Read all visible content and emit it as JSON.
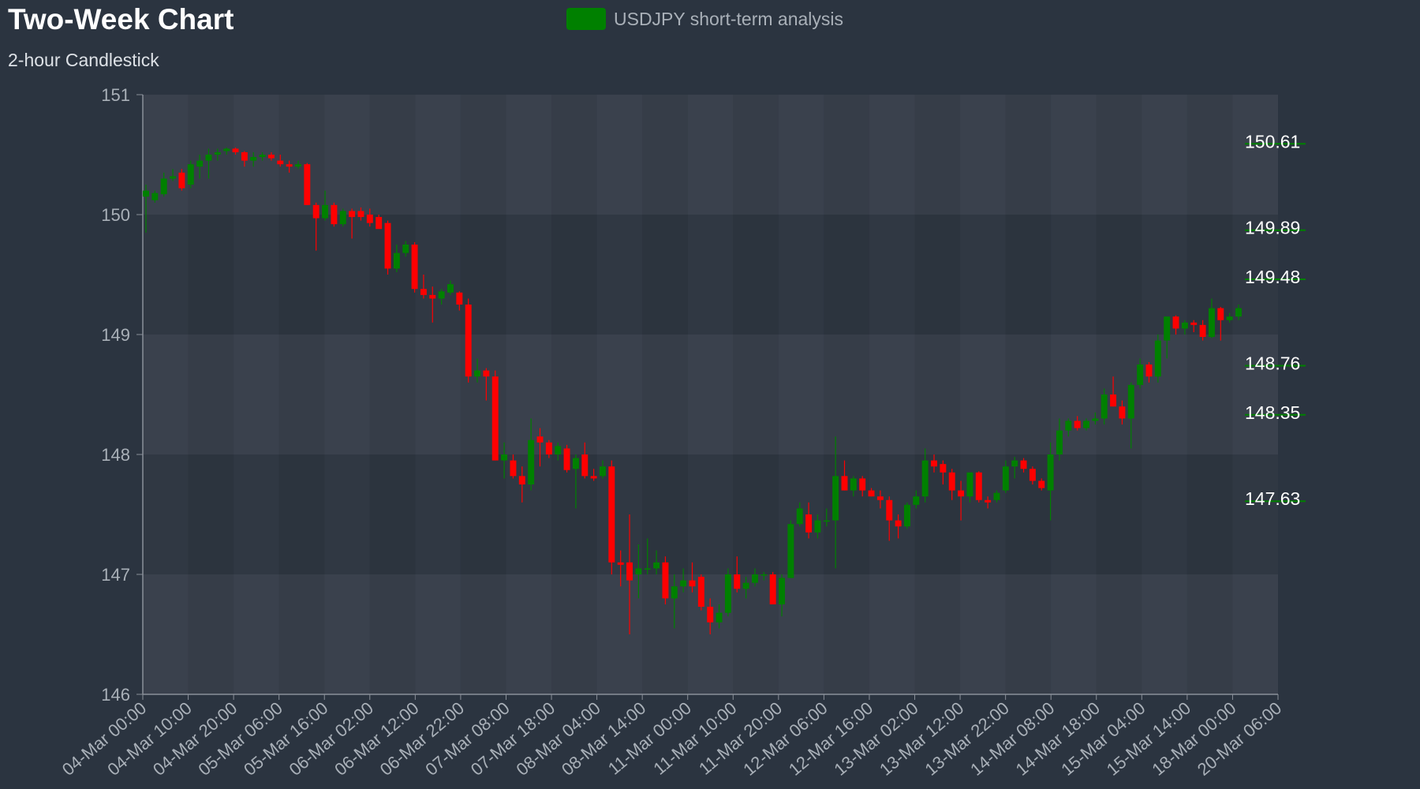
{
  "chart_data": {
    "type": "candlestick",
    "title": "Two-Week Chart",
    "subtitle": "2-hour Candlestick",
    "legend": {
      "label": "USDJPY short-term analysis",
      "color": "#008000",
      "placement": "top-center"
    },
    "y_axis": {
      "min": 146,
      "max": 151,
      "ticks": [
        146,
        147,
        148,
        149,
        150,
        151
      ]
    },
    "x_tick_labels": [
      "04-Mar 00:00",
      "04-Mar 10:00",
      "04-Mar 20:00",
      "05-Mar 06:00",
      "05-Mar 16:00",
      "06-Mar 02:00",
      "06-Mar 12:00",
      "06-Mar 22:00",
      "07-Mar 08:00",
      "07-Mar 18:00",
      "08-Mar 04:00",
      "08-Mar 14:00",
      "11-Mar 00:00",
      "11-Mar 10:00",
      "11-Mar 20:00",
      "12-Mar 06:00",
      "12-Mar 16:00",
      "13-Mar 02:00",
      "13-Mar 12:00",
      "13-Mar 22:00",
      "14-Mar 08:00",
      "14-Mar 18:00",
      "15-Mar 04:00",
      "15-Mar 14:00",
      "18-Mar 00:00",
      "20-Mar 06:00"
    ],
    "up_color": "#008000",
    "down_color": "#ff0000",
    "grid": true,
    "levels": [
      150.61,
      149.89,
      149.48,
      148.76,
      148.35,
      147.63
    ],
    "ohlc": [
      [
        150.15,
        150.25,
        149.85,
        150.2
      ],
      [
        150.12,
        150.2,
        150.1,
        150.18
      ],
      [
        150.17,
        150.35,
        150.15,
        150.3
      ],
      [
        150.3,
        150.38,
        150.28,
        150.32
      ],
      [
        150.35,
        150.38,
        150.2,
        150.22
      ],
      [
        150.25,
        150.45,
        150.22,
        150.42
      ],
      [
        150.4,
        150.5,
        150.3,
        150.45
      ],
      [
        150.45,
        150.55,
        150.3,
        150.5
      ],
      [
        150.5,
        150.55,
        150.45,
        150.52
      ],
      [
        150.53,
        150.56,
        150.5,
        150.55
      ],
      [
        150.55,
        150.56,
        150.5,
        150.52
      ],
      [
        150.52,
        150.53,
        150.4,
        150.45
      ],
      [
        150.45,
        150.52,
        150.4,
        150.48
      ],
      [
        150.48,
        150.52,
        150.45,
        150.5
      ],
      [
        150.5,
        150.52,
        150.45,
        150.47
      ],
      [
        150.45,
        150.5,
        150.4,
        150.42
      ],
      [
        150.42,
        150.45,
        150.35,
        150.4
      ],
      [
        150.4,
        150.45,
        150.38,
        150.42
      ],
      [
        150.42,
        150.43,
        150.08,
        150.08
      ],
      [
        150.08,
        150.1,
        149.7,
        149.97
      ],
      [
        149.97,
        150.2,
        149.95,
        150.08
      ],
      [
        150.08,
        150.1,
        149.9,
        149.92
      ],
      [
        149.92,
        150.05,
        149.9,
        150.03
      ],
      [
        150.03,
        150.05,
        149.8,
        149.98
      ],
      [
        150.03,
        150.06,
        149.95,
        149.98
      ],
      [
        150.0,
        150.05,
        149.9,
        149.93
      ],
      [
        149.98,
        150.0,
        149.9,
        149.88
      ],
      [
        149.93,
        149.95,
        149.5,
        149.55
      ],
      [
        149.55,
        149.75,
        149.52,
        149.68
      ],
      [
        149.68,
        149.78,
        149.65,
        149.75
      ],
      [
        149.75,
        149.77,
        149.35,
        149.38
      ],
      [
        149.38,
        149.5,
        149.3,
        149.33
      ],
      [
        149.33,
        149.4,
        149.1,
        149.3
      ],
      [
        149.3,
        149.38,
        149.25,
        149.36
      ],
      [
        149.35,
        149.45,
        149.33,
        149.42
      ],
      [
        149.35,
        149.36,
        149.2,
        149.25
      ],
      [
        149.25,
        149.3,
        148.6,
        148.65
      ],
      [
        148.65,
        148.8,
        148.6,
        148.7
      ],
      [
        148.7,
        148.72,
        148.45,
        148.65
      ],
      [
        148.65,
        148.7,
        147.95,
        147.95
      ],
      [
        147.95,
        148.1,
        147.8,
        148.0
      ],
      [
        147.95,
        148.0,
        147.8,
        147.82
      ],
      [
        147.82,
        147.9,
        147.6,
        147.75
      ],
      [
        147.75,
        148.3,
        147.7,
        148.12
      ],
      [
        148.15,
        148.22,
        147.9,
        148.1
      ],
      [
        148.1,
        148.12,
        147.97,
        148.0
      ],
      [
        148.0,
        148.1,
        147.95,
        148.07
      ],
      [
        148.05,
        148.08,
        147.85,
        147.87
      ],
      [
        147.88,
        148.0,
        147.55,
        147.97
      ],
      [
        148.0,
        148.1,
        147.8,
        147.82
      ],
      [
        147.82,
        147.88,
        147.78,
        147.8
      ],
      [
        147.82,
        147.95,
        147.8,
        147.9
      ],
      [
        147.9,
        147.95,
        147.0,
        147.1
      ],
      [
        147.1,
        147.2,
        146.9,
        147.08
      ],
      [
        147.1,
        147.5,
        146.5,
        146.95
      ],
      [
        147.0,
        147.25,
        146.8,
        147.05
      ],
      [
        147.05,
        147.3,
        147.0,
        147.05
      ],
      [
        147.05,
        147.2,
        147.0,
        147.1
      ],
      [
        147.1,
        147.15,
        146.75,
        146.8
      ],
      [
        146.8,
        147.0,
        146.55,
        146.9
      ],
      [
        146.9,
        147.05,
        146.85,
        146.95
      ],
      [
        146.95,
        147.1,
        146.85,
        146.9
      ],
      [
        146.98,
        147.0,
        146.7,
        146.73
      ],
      [
        146.73,
        146.8,
        146.5,
        146.6
      ],
      [
        146.6,
        146.75,
        146.55,
        146.68
      ],
      [
        146.68,
        147.05,
        146.65,
        147.0
      ],
      [
        147.0,
        147.15,
        146.85,
        146.88
      ],
      [
        146.88,
        146.98,
        146.8,
        146.93
      ],
      [
        146.93,
        147.05,
        146.9,
        147.0
      ],
      [
        147.0,
        147.02,
        146.95,
        147.0
      ],
      [
        147.0,
        147.02,
        146.75,
        146.75
      ],
      [
        146.75,
        147.0,
        146.65,
        146.97
      ],
      [
        146.97,
        147.45,
        146.97,
        147.42
      ],
      [
        147.42,
        147.6,
        147.4,
        147.55
      ],
      [
        147.5,
        147.6,
        147.3,
        147.35
      ],
      [
        147.35,
        147.5,
        147.3,
        147.45
      ],
      [
        147.45,
        147.55,
        147.4,
        147.45
      ],
      [
        147.45,
        148.15,
        147.05,
        147.82
      ],
      [
        147.82,
        147.95,
        147.7,
        147.7
      ],
      [
        147.7,
        147.82,
        147.65,
        147.8
      ],
      [
        147.8,
        147.82,
        147.65,
        147.7
      ],
      [
        147.7,
        147.72,
        147.65,
        147.65
      ],
      [
        147.65,
        147.7,
        147.55,
        147.62
      ],
      [
        147.62,
        147.65,
        147.28,
        147.45
      ],
      [
        147.45,
        147.5,
        147.3,
        147.4
      ],
      [
        147.4,
        147.6,
        147.38,
        147.58
      ],
      [
        147.58,
        147.7,
        147.55,
        147.65
      ],
      [
        147.65,
        148.05,
        147.6,
        147.95
      ],
      [
        147.95,
        148.0,
        147.85,
        147.9
      ],
      [
        147.92,
        147.95,
        147.75,
        147.85
      ],
      [
        147.85,
        147.88,
        147.62,
        147.7
      ],
      [
        147.7,
        147.78,
        147.45,
        147.65
      ],
      [
        147.65,
        147.85,
        147.6,
        147.85
      ],
      [
        147.85,
        147.86,
        147.6,
        147.62
      ],
      [
        147.62,
        147.65,
        147.55,
        147.6
      ],
      [
        147.62,
        147.7,
        147.6,
        147.68
      ],
      [
        147.7,
        147.95,
        147.68,
        147.9
      ],
      [
        147.9,
        147.98,
        147.8,
        147.95
      ],
      [
        147.95,
        147.97,
        147.85,
        147.88
      ],
      [
        147.88,
        147.9,
        147.75,
        147.78
      ],
      [
        147.78,
        147.8,
        147.7,
        147.72
      ],
      [
        147.7,
        148.1,
        147.45,
        148.0
      ],
      [
        148.0,
        148.3,
        147.95,
        148.2
      ],
      [
        148.2,
        148.3,
        148.15,
        148.28
      ],
      [
        148.28,
        148.32,
        148.2,
        148.22
      ],
      [
        148.22,
        148.3,
        148.2,
        148.28
      ],
      [
        148.28,
        148.35,
        148.25,
        148.3
      ],
      [
        148.3,
        148.55,
        148.25,
        148.5
      ],
      [
        148.5,
        148.65,
        148.4,
        148.4
      ],
      [
        148.4,
        148.45,
        148.25,
        148.3
      ],
      [
        148.3,
        148.6,
        148.05,
        148.58
      ],
      [
        148.58,
        148.8,
        148.55,
        148.75
      ],
      [
        148.75,
        148.77,
        148.6,
        148.65
      ],
      [
        148.65,
        149.0,
        148.6,
        148.95
      ],
      [
        148.95,
        149.15,
        148.8,
        149.15
      ],
      [
        149.15,
        149.16,
        149.0,
        149.05
      ],
      [
        149.05,
        149.12,
        149.0,
        149.1
      ],
      [
        149.1,
        149.12,
        149.02,
        149.08
      ],
      [
        149.08,
        149.12,
        148.95,
        148.98
      ],
      [
        148.98,
        149.3,
        148.97,
        149.22
      ],
      [
        149.22,
        149.23,
        148.95,
        149.12
      ],
      [
        149.12,
        149.18,
        149.1,
        149.15
      ],
      [
        149.15,
        149.25,
        149.12,
        149.22
      ]
    ]
  }
}
